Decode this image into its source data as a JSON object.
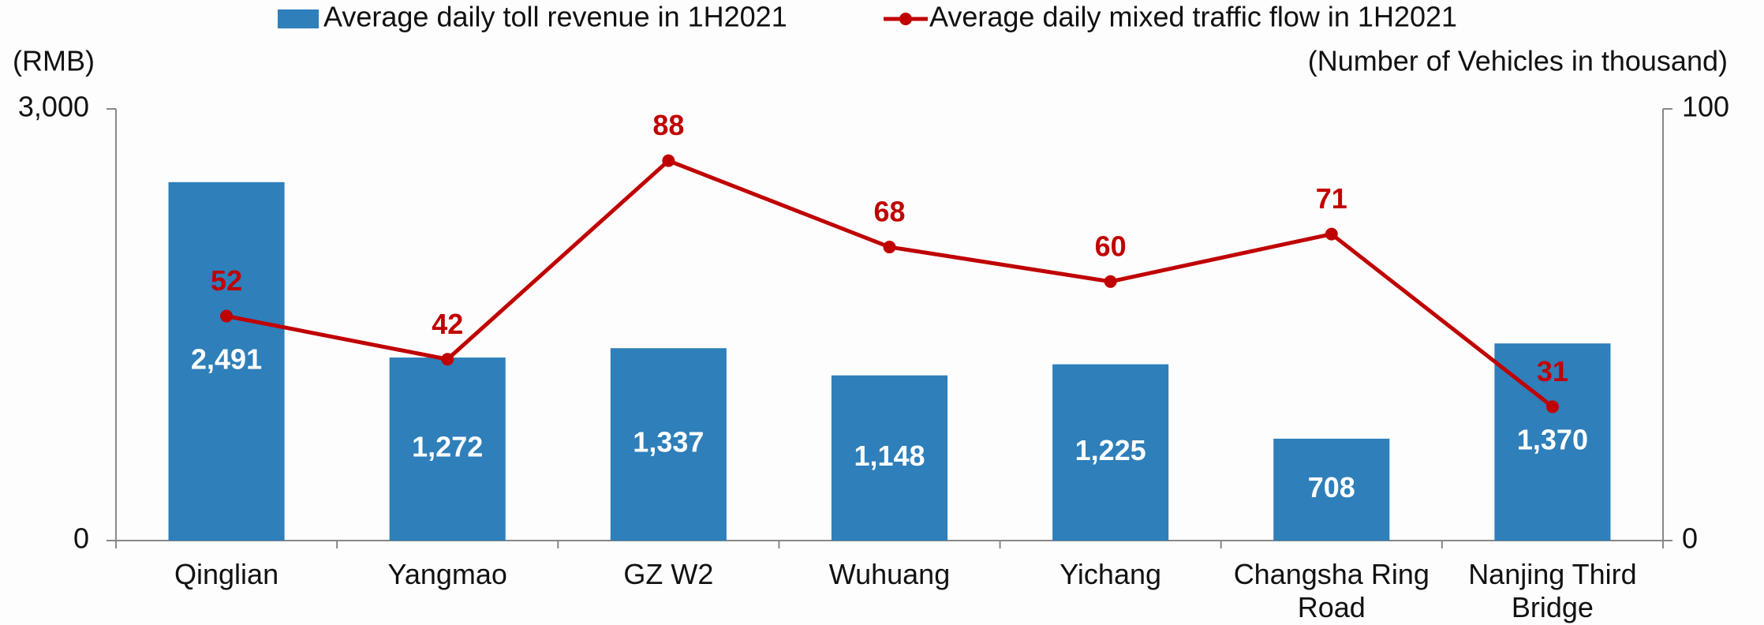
{
  "chart_data": {
    "type": "bar_line",
    "categories": [
      "Qinglian",
      "Yangmao",
      "GZ W2",
      "Wuhuang",
      "Yichang",
      "Changsha Ring Road",
      "Nanjing Third Bridge"
    ],
    "series": [
      {
        "name": "Average daily toll revenue in 1H2021",
        "type": "bar",
        "color": "#2e7fba",
        "axis": "y",
        "values": [
          2491,
          1272,
          1337,
          1148,
          1225,
          708,
          1370
        ],
        "value_labels": [
          "2,491",
          "1,272",
          "1,337",
          "1,148",
          "1,225",
          "708",
          "1,370"
        ]
      },
      {
        "name": "Average daily mixed traffic flow in 1H2021",
        "type": "line",
        "color": "#c00000",
        "axis": "y2",
        "values": [
          52,
          42,
          88,
          68,
          60,
          71,
          31
        ]
      }
    ],
    "y_label": "(RMB)",
    "y2_label": "(Number of Vehicles in thousand)",
    "ylim": [
      0,
      3000
    ],
    "yticks": [
      0,
      {
        "value": 3000,
        "label": "3,000"
      }
    ],
    "y2lim": [
      0,
      100
    ],
    "y2ticks": [
      0,
      100
    ],
    "legend": "top"
  }
}
